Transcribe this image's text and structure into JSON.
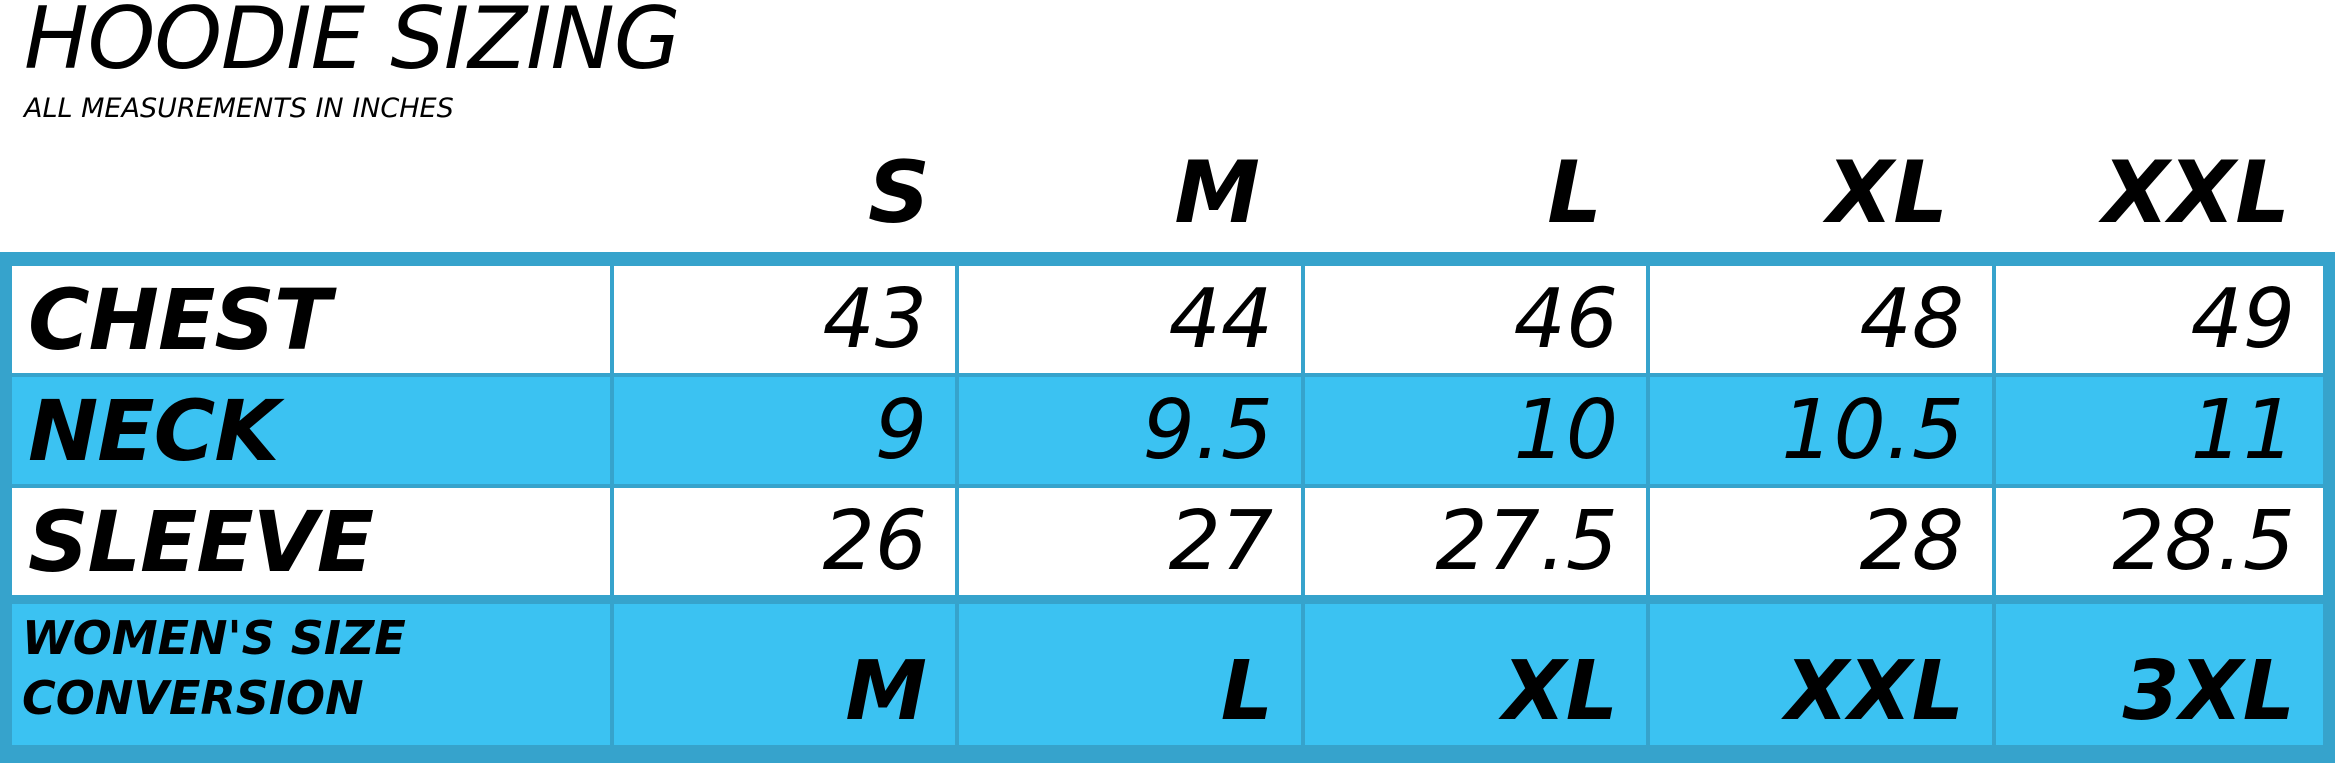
{
  "header": {
    "title": "HOODIE SIZING",
    "subtitle": "ALL MEASUREMENTS IN INCHES"
  },
  "sizes": [
    "S",
    "M",
    "L",
    "XL",
    "XXL"
  ],
  "rows": [
    {
      "label": "CHEST",
      "values": [
        "43",
        "44",
        "46",
        "48",
        "49"
      ]
    },
    {
      "label": "NECK",
      "values": [
        "9",
        "9.5",
        "10",
        "10.5",
        "11"
      ]
    },
    {
      "label": "SLEEVE",
      "values": [
        "26",
        "27",
        "27.5",
        "28",
        "28.5"
      ]
    },
    {
      "label_line1": "WOMEN'S SIZE",
      "label_line2": "CONVERSION",
      "values": [
        "M",
        "L",
        "XL",
        "XXL",
        "3XL"
      ]
    }
  ],
  "colors": {
    "border": "#36a3cc",
    "blue_row": "#3bc2f2",
    "white_row": "#ffffff",
    "text": "#000000"
  }
}
